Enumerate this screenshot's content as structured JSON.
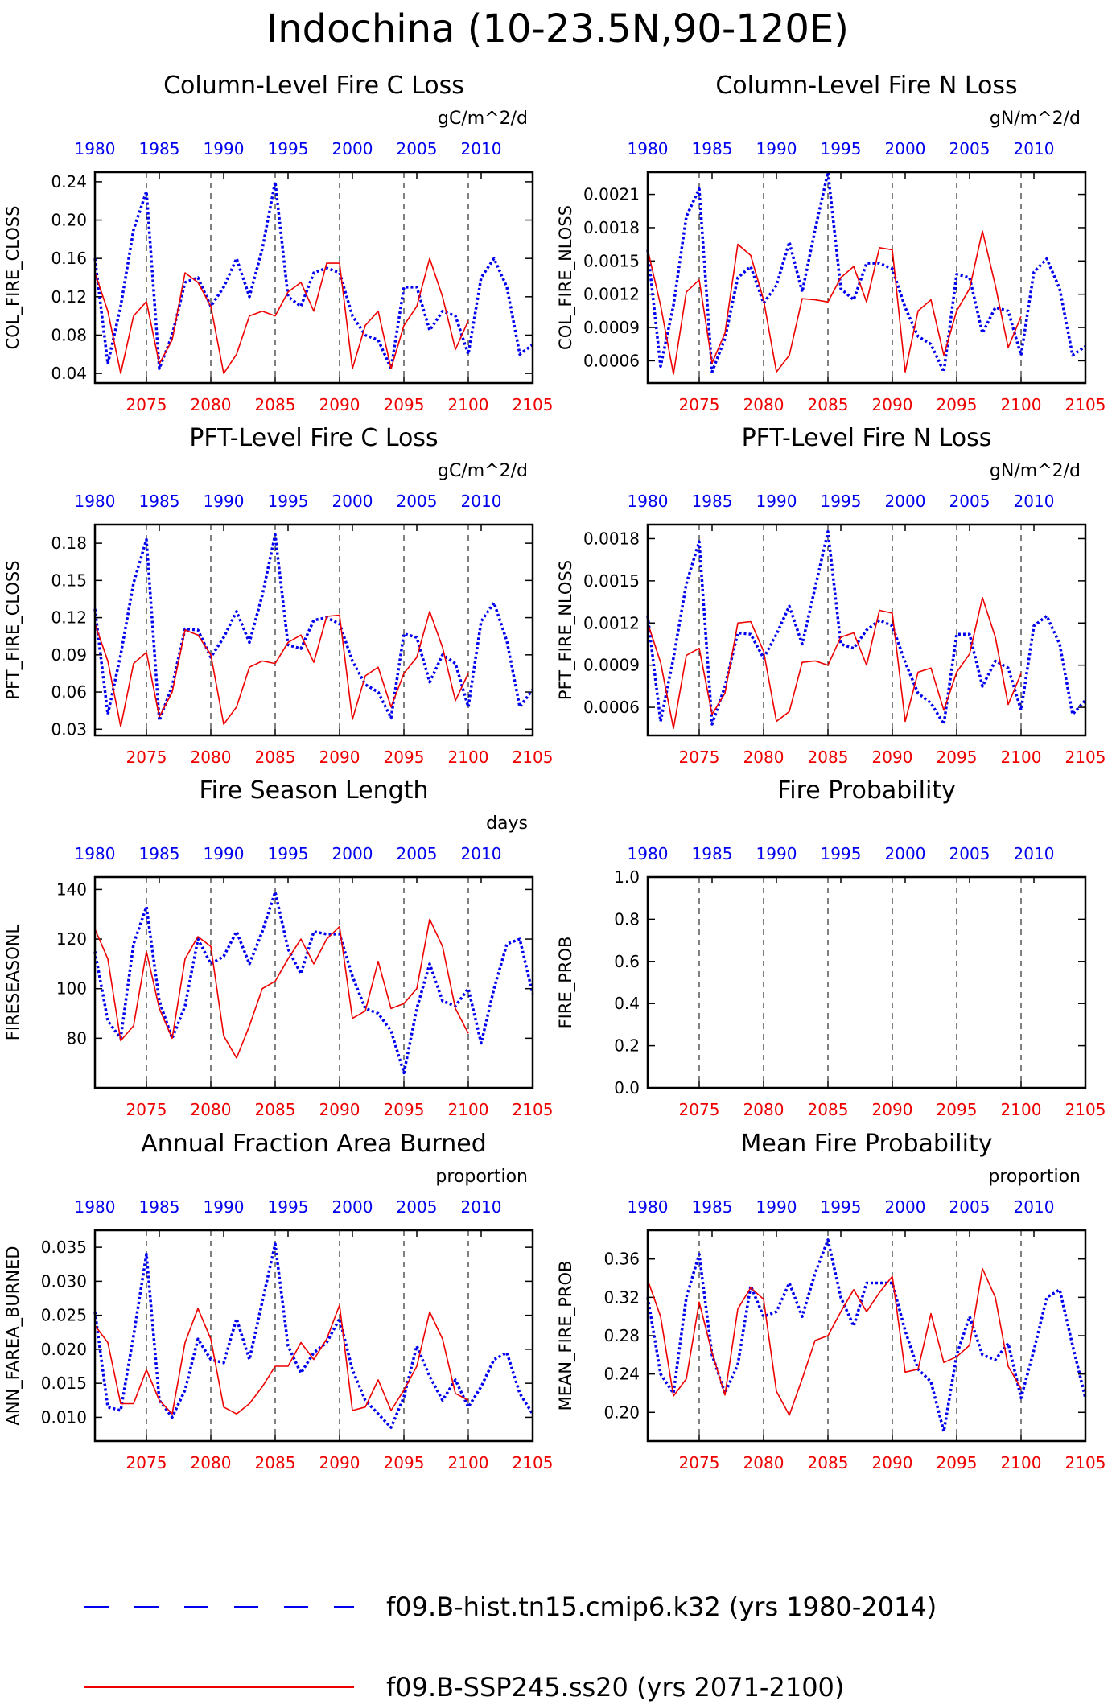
{
  "page": {
    "title": "Indochina (10-23.5N,90-120E)"
  },
  "legend": {
    "hist_label": "f09.B-hist.tn15.cmip6.k32 (yrs 1980-2014)",
    "ssp_label": "f09.B-SSP245.ss20 (yrs 2071-2100)"
  },
  "colors": {
    "hist": "#0000ee",
    "ssp": "#ee0000",
    "axis": "#000000"
  },
  "axes_common": {
    "bottom_ticks": [
      "2075",
      "2080",
      "2085",
      "2090",
      "2095",
      "2100",
      "2105"
    ],
    "top_ticks": [
      "1980",
      "1985",
      "1990",
      "1995",
      "2000",
      "2005",
      "2010"
    ],
    "bottom_range": [
      2071,
      2105
    ],
    "dashed_verticals_at_bottom_year": [
      2075,
      2080,
      2085,
      2090,
      2095,
      2100
    ]
  },
  "chart_data": [
    {
      "type": "line",
      "title": "Column-Level Fire C Loss",
      "ylabel": "COL_FIRE_CLOSS",
      "units": "gC/m^2/d",
      "ylim": [
        0.03,
        0.25
      ],
      "yticks": [
        "0.04",
        "0.08",
        "0.12",
        "0.16",
        "0.20",
        "0.24"
      ],
      "series": [
        {
          "key": "hist",
          "x_start": 2071,
          "values": [
            0.16,
            0.05,
            0.11,
            0.19,
            0.23,
            0.045,
            0.08,
            0.135,
            0.14,
            0.11,
            0.13,
            0.16,
            0.12,
            0.17,
            0.24,
            0.12,
            0.11,
            0.145,
            0.15,
            0.145,
            0.1,
            0.08,
            0.075,
            0.045,
            0.13,
            0.13,
            0.085,
            0.105,
            0.1,
            0.06,
            0.14,
            0.16,
            0.13,
            0.06,
            0.07
          ]
        },
        {
          "key": "ssp",
          "x_start": 2071,
          "values": [
            0.145,
            0.105,
            0.04,
            0.1,
            0.115,
            0.05,
            0.075,
            0.145,
            0.135,
            0.11,
            0.04,
            0.06,
            0.1,
            0.105,
            0.1,
            0.125,
            0.135,
            0.105,
            0.155,
            0.155,
            0.045,
            0.09,
            0.105,
            0.045,
            0.09,
            0.11,
            0.16,
            0.12,
            0.065,
            0.095
          ]
        }
      ]
    },
    {
      "type": "line",
      "title": "Column-Level Fire N Loss",
      "ylabel": "COL_FIRE_NLOSS",
      "units": "gN/m^2/d",
      "ylim": [
        0.0004,
        0.0023
      ],
      "yticks": [
        "0.0006",
        "0.0009",
        "0.0012",
        "0.0015",
        "0.0018",
        "0.0021"
      ],
      "series": [
        {
          "key": "hist",
          "x_start": 2071,
          "values": [
            0.0016,
            0.00055,
            0.0011,
            0.0019,
            0.00215,
            0.0005,
            0.0008,
            0.00135,
            0.00145,
            0.00112,
            0.00128,
            0.00167,
            0.00122,
            0.00178,
            0.0023,
            0.00125,
            0.00115,
            0.00148,
            0.00148,
            0.00143,
            0.00108,
            0.00082,
            0.00075,
            0.0005,
            0.00138,
            0.00135,
            0.00085,
            0.00108,
            0.00105,
            0.00065,
            0.0014,
            0.00152,
            0.00125,
            0.00065,
            0.00073
          ]
        },
        {
          "key": "ssp",
          "x_start": 2071,
          "values": [
            0.0016,
            0.0011,
            0.00048,
            0.00122,
            0.00133,
            0.00058,
            0.00085,
            0.00165,
            0.00155,
            0.00115,
            0.0005,
            0.00065,
            0.00116,
            0.00115,
            0.00113,
            0.00135,
            0.00145,
            0.00113,
            0.00162,
            0.0016,
            0.0005,
            0.00105,
            0.00115,
            0.00065,
            0.00105,
            0.00125,
            0.00177,
            0.00128,
            0.00072,
            0.001
          ]
        }
      ]
    },
    {
      "type": "line",
      "title": "PFT-Level Fire C Loss",
      "ylabel": "PFT_FIRE_CLOSS",
      "units": "gC/m^2/d",
      "ylim": [
        0.025,
        0.195
      ],
      "yticks": [
        "0.03",
        "0.06",
        "0.09",
        "0.12",
        "0.15",
        "0.18"
      ],
      "series": [
        {
          "key": "hist",
          "x_start": 2071,
          "values": [
            0.127,
            0.042,
            0.09,
            0.148,
            0.183,
            0.037,
            0.065,
            0.111,
            0.11,
            0.088,
            0.104,
            0.125,
            0.1,
            0.138,
            0.187,
            0.098,
            0.095,
            0.118,
            0.12,
            0.115,
            0.085,
            0.066,
            0.06,
            0.039,
            0.107,
            0.104,
            0.068,
            0.09,
            0.083,
            0.048,
            0.117,
            0.132,
            0.101,
            0.048,
            0.062
          ]
        },
        {
          "key": "ssp",
          "x_start": 2071,
          "values": [
            0.115,
            0.085,
            0.032,
            0.083,
            0.092,
            0.04,
            0.06,
            0.11,
            0.106,
            0.09,
            0.034,
            0.048,
            0.08,
            0.085,
            0.083,
            0.1,
            0.106,
            0.084,
            0.121,
            0.122,
            0.038,
            0.073,
            0.08,
            0.048,
            0.075,
            0.088,
            0.125,
            0.096,
            0.053,
            0.075
          ]
        }
      ]
    },
    {
      "type": "line",
      "title": "PFT-Level Fire N Loss",
      "ylabel": "PFT_FIRE_NLOSS",
      "units": "gN/m^2/d",
      "ylim": [
        0.0004,
        0.0019
      ],
      "yticks": [
        "0.0006",
        "0.0009",
        "0.0012",
        "0.0015",
        "0.0018"
      ],
      "series": [
        {
          "key": "hist",
          "x_start": 2071,
          "values": [
            0.00125,
            0.0005,
            0.00095,
            0.00148,
            0.00178,
            0.00048,
            0.00075,
            0.00113,
            0.00112,
            0.00095,
            0.00112,
            0.00132,
            0.00105,
            0.00145,
            0.00185,
            0.00105,
            0.00102,
            0.00115,
            0.00122,
            0.00118,
            0.00092,
            0.0007,
            0.00063,
            0.00048,
            0.00112,
            0.00112,
            0.00075,
            0.00093,
            0.00088,
            0.00058,
            0.00118,
            0.00125,
            0.00105,
            0.00055,
            0.00065
          ]
        },
        {
          "key": "ssp",
          "x_start": 2071,
          "values": [
            0.0012,
            0.00092,
            0.00045,
            0.00097,
            0.00102,
            0.00055,
            0.0007,
            0.0012,
            0.00121,
            0.001,
            0.0005,
            0.00057,
            0.00092,
            0.00093,
            0.0009,
            0.0011,
            0.00113,
            0.0009,
            0.00129,
            0.00127,
            0.0005,
            0.00085,
            0.00088,
            0.00058,
            0.00085,
            0.00098,
            0.00138,
            0.0011,
            0.00062,
            0.00084
          ]
        }
      ]
    },
    {
      "type": "line",
      "title": "Fire Season Length",
      "ylabel": "FIRESEASONL",
      "units": "days",
      "ylim": [
        60,
        145
      ],
      "yticks": [
        "80",
        "100",
        "120",
        "140"
      ],
      "series": [
        {
          "key": "hist",
          "x_start": 2071,
          "values": [
            115,
            87,
            80,
            118,
            133,
            95,
            80,
            93,
            120,
            110,
            113,
            123,
            110,
            123,
            139,
            116,
            106,
            123,
            122,
            122,
            105,
            92,
            90,
            83,
            66,
            92,
            110,
            95,
            93,
            100,
            78,
            100,
            118,
            120,
            98
          ]
        },
        {
          "key": "ssp",
          "x_start": 2071,
          "values": [
            124,
            112,
            79,
            85,
            115,
            92,
            80,
            112,
            121,
            117,
            81,
            72,
            85,
            100,
            103,
            112,
            120,
            110,
            120,
            125,
            88,
            91,
            111,
            92,
            94,
            100,
            128,
            117,
            92,
            82
          ]
        }
      ]
    },
    {
      "type": "line",
      "title": "Fire Probability",
      "ylabel": "FIRE_PROB",
      "units": "",
      "ylim": [
        0.0,
        1.0
      ],
      "yticks": [
        "0.0",
        "0.2",
        "0.4",
        "0.6",
        "0.8",
        "1.0"
      ],
      "series": []
    },
    {
      "type": "line",
      "title": "Annual Fraction Area Burned",
      "ylabel": "ANN_FAREA_BURNED",
      "units": "proportion",
      "ylim": [
        0.0065,
        0.0375
      ],
      "yticks": [
        "0.010",
        "0.015",
        "0.020",
        "0.025",
        "0.030",
        "0.035"
      ],
      "series": [
        {
          "key": "hist",
          "x_start": 2071,
          "values": [
            0.0255,
            0.0115,
            0.011,
            0.022,
            0.034,
            0.0125,
            0.01,
            0.014,
            0.0215,
            0.0185,
            0.018,
            0.0245,
            0.0185,
            0.027,
            0.0355,
            0.0205,
            0.0165,
            0.0195,
            0.021,
            0.0245,
            0.017,
            0.0125,
            0.0105,
            0.0085,
            0.013,
            0.0205,
            0.016,
            0.0125,
            0.0155,
            0.0115,
            0.0145,
            0.0185,
            0.0195,
            0.0135,
            0.0105
          ]
        },
        {
          "key": "ssp",
          "x_start": 2071,
          "values": [
            0.0235,
            0.021,
            0.012,
            0.012,
            0.017,
            0.0125,
            0.0105,
            0.021,
            0.026,
            0.0215,
            0.0115,
            0.0105,
            0.012,
            0.0145,
            0.0175,
            0.0175,
            0.021,
            0.0185,
            0.0215,
            0.0265,
            0.011,
            0.0115,
            0.0155,
            0.011,
            0.014,
            0.0175,
            0.0255,
            0.0215,
            0.0135,
            0.0125
          ]
        }
      ]
    },
    {
      "type": "line",
      "title": "Mean Fire Probability",
      "ylabel": "MEAN_FIRE_PROB",
      "units": "proportion",
      "ylim": [
        0.17,
        0.39
      ],
      "yticks": [
        "0.20",
        "0.24",
        "0.28",
        "0.32",
        "0.36"
      ],
      "series": [
        {
          "key": "hist",
          "x_start": 2071,
          "values": [
            0.32,
            0.24,
            0.22,
            0.32,
            0.365,
            0.26,
            0.22,
            0.25,
            0.332,
            0.3,
            0.305,
            0.335,
            0.3,
            0.345,
            0.38,
            0.32,
            0.29,
            0.335,
            0.335,
            0.335,
            0.285,
            0.245,
            0.232,
            0.18,
            0.26,
            0.3,
            0.26,
            0.255,
            0.272,
            0.215,
            0.265,
            0.32,
            0.328,
            0.27,
            0.215
          ]
        },
        {
          "key": "ssp",
          "x_start": 2071,
          "values": [
            0.338,
            0.3,
            0.217,
            0.235,
            0.315,
            0.262,
            0.218,
            0.308,
            0.33,
            0.318,
            0.222,
            0.197,
            0.235,
            0.275,
            0.28,
            0.305,
            0.328,
            0.305,
            0.325,
            0.342,
            0.242,
            0.245,
            0.303,
            0.252,
            0.258,
            0.27,
            0.35,
            0.32,
            0.248,
            0.225
          ]
        }
      ]
    }
  ]
}
